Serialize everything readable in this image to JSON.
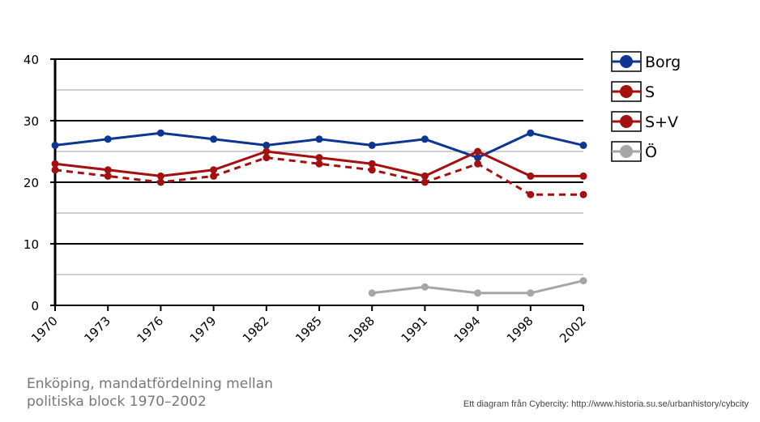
{
  "chart_data": {
    "type": "line",
    "title": "",
    "xlabel": "",
    "ylabel": "",
    "categories": [
      "1970",
      "1973",
      "1976",
      "1979",
      "1982",
      "1985",
      "1988",
      "1991",
      "1994",
      "1998",
      "2002"
    ],
    "ylim": [
      0,
      40
    ],
    "yticks": [
      0,
      10,
      20,
      30,
      40
    ],
    "grid": true,
    "legend": "right",
    "series": [
      {
        "name": "Borg",
        "color": "#0d3592",
        "style": "solid",
        "values": [
          26,
          27,
          28,
          27,
          26,
          27,
          26,
          27,
          24,
          28,
          26
        ]
      },
      {
        "name": "S",
        "color": "#a40f0f",
        "style": "dashed",
        "values": [
          22,
          21,
          20,
          21,
          24,
          23,
          22,
          20,
          23,
          18,
          18
        ]
      },
      {
        "name": "S+V",
        "color": "#a40f0f",
        "style": "solid",
        "values": [
          23,
          22,
          21,
          22,
          25,
          24,
          23,
          21,
          25,
          21,
          21
        ]
      },
      {
        "name": "Ö",
        "color": "#a6a6a6",
        "style": "solid",
        "values": [
          null,
          null,
          null,
          null,
          null,
          null,
          2,
          3,
          2,
          2,
          4
        ]
      }
    ]
  },
  "caption": "Enköping, mandatfördelning mellan politiska block 1970–2002",
  "credit": "Ett diagram från Cybercity: http://www.historia.su.se/urbanhistory/cybcity"
}
